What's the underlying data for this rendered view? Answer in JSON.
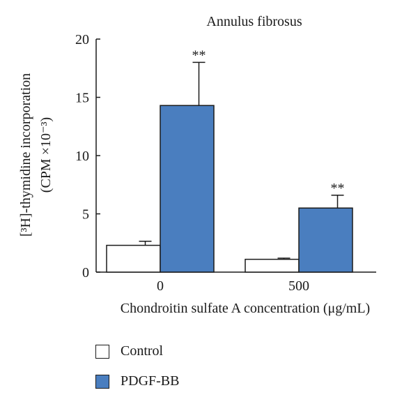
{
  "colors": {
    "control": "#ffffff",
    "pdgf": "#4a7ebf",
    "axis": "#1a1a1a"
  },
  "chart_data": {
    "type": "bar",
    "title": "Annulus fibrosus",
    "xlabel": "Chondroitin sulfate A concentration (μg/mL)",
    "ylabel_line1": "[³H]-thymidine incorporation",
    "ylabel_line2": "(CPM ×10⁻³)",
    "categories": [
      "0",
      "500"
    ],
    "ylim": [
      0,
      20
    ],
    "yticks": [
      "0",
      "5",
      "10",
      "15",
      "20"
    ],
    "series": [
      {
        "name": "Control",
        "values": [
          2.3,
          1.1
        ],
        "errors": [
          0.35,
          0.1
        ],
        "annotations": [
          "",
          ""
        ]
      },
      {
        "name": "PDGF-BB",
        "values": [
          14.3,
          5.5
        ],
        "errors": [
          3.7,
          1.1
        ],
        "annotations": [
          "**",
          "**"
        ]
      }
    ],
    "legend_position": "bottom-left"
  }
}
